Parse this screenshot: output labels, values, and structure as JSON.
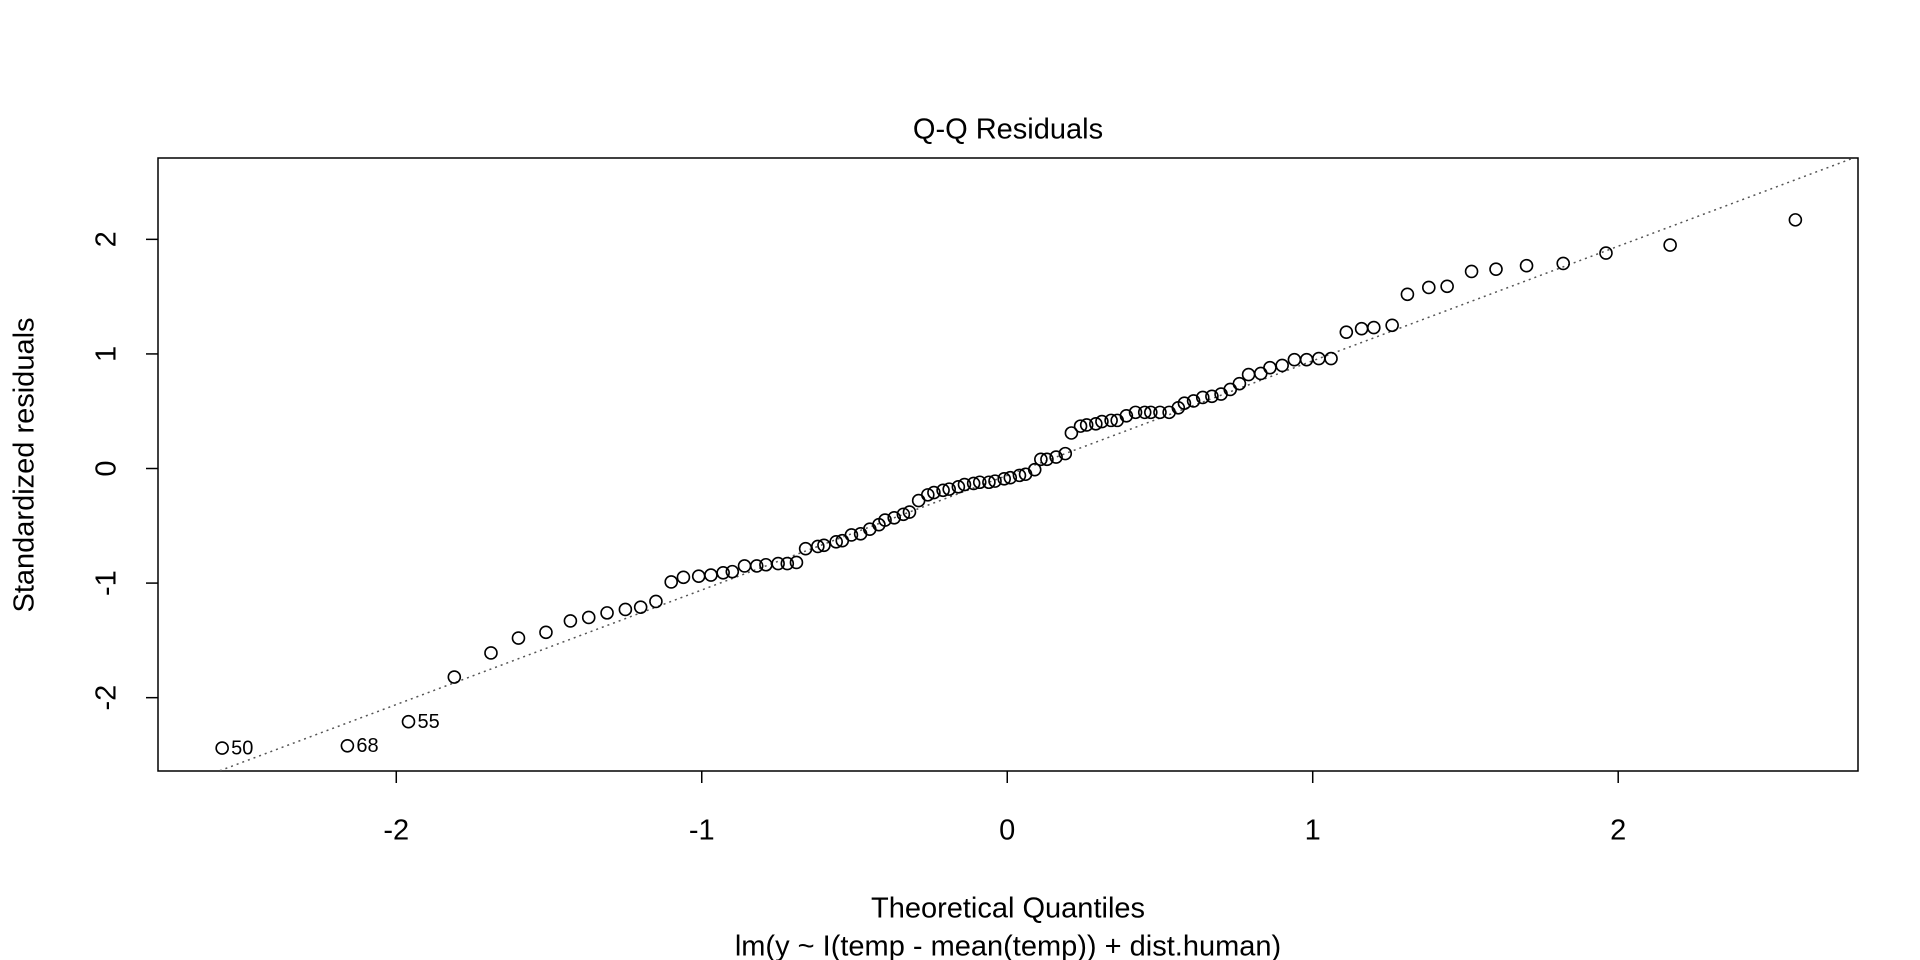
{
  "chart_data": {
    "type": "scatter",
    "title": "Q-Q Residuals",
    "x_label": "Theoretical Quantiles",
    "subtitle": "lm(y ~ I(temp - mean(temp)) + dist.human)",
    "y_label": "Standardized residuals",
    "xlim": [
      -2.78,
      2.785
    ],
    "ylim": [
      -2.64,
      2.71
    ],
    "xticks": [
      -2,
      -1,
      0,
      1,
      2
    ],
    "yticks": [
      -2,
      -1,
      0,
      1,
      2
    ],
    "color": "#000000",
    "reference_line": {
      "intercept": -0.06,
      "slope": 1.0
    },
    "x": [
      -2.57,
      -2.16,
      -1.96,
      -1.81,
      -1.69,
      -1.6,
      -1.51,
      -1.43,
      -1.37,
      -1.31,
      -1.25,
      -1.2,
      -1.15,
      -1.1,
      -1.06,
      -1.01,
      -0.97,
      -0.93,
      -0.9,
      -0.86,
      -0.82,
      -0.79,
      -0.75,
      -0.72,
      -0.69,
      -0.66,
      -0.62,
      -0.6,
      -0.56,
      -0.54,
      -0.51,
      -0.48,
      -0.45,
      -0.42,
      -0.4,
      -0.37,
      -0.34,
      -0.32,
      -0.29,
      -0.26,
      -0.24,
      -0.21,
      -0.19,
      -0.16,
      -0.14,
      -0.11,
      -0.09,
      -0.06,
      -0.04,
      -0.01,
      0.01,
      0.04,
      0.06,
      0.09,
      0.11,
      0.13,
      0.16,
      0.19,
      0.21,
      0.24,
      0.26,
      0.29,
      0.31,
      0.34,
      0.36,
      0.39,
      0.42,
      0.45,
      0.47,
      0.5,
      0.53,
      0.56,
      0.58,
      0.61,
      0.64,
      0.67,
      0.7,
      0.73,
      0.76,
      0.79,
      0.83,
      0.86,
      0.9,
      0.94,
      0.98,
      1.02,
      1.06,
      1.11,
      1.16,
      1.2,
      1.26,
      1.31,
      1.38,
      1.44,
      1.52,
      1.6,
      1.7,
      1.82,
      1.96,
      2.17,
      2.58
    ],
    "values": [
      -2.44,
      -2.42,
      -2.21,
      -1.82,
      -1.61,
      -1.48,
      -1.43,
      -1.33,
      -1.3,
      -1.26,
      -1.23,
      -1.21,
      -1.16,
      -0.99,
      -0.95,
      -0.94,
      -0.93,
      -0.91,
      -0.9,
      -0.85,
      -0.85,
      -0.84,
      -0.83,
      -0.83,
      -0.82,
      -0.7,
      -0.68,
      -0.67,
      -0.64,
      -0.63,
      -0.58,
      -0.57,
      -0.53,
      -0.49,
      -0.45,
      -0.43,
      -0.4,
      -0.38,
      -0.28,
      -0.23,
      -0.21,
      -0.19,
      -0.18,
      -0.16,
      -0.14,
      -0.13,
      -0.12,
      -0.12,
      -0.11,
      -0.09,
      -0.08,
      -0.06,
      -0.05,
      -0.01,
      0.08,
      0.08,
      0.1,
      0.13,
      0.31,
      0.37,
      0.38,
      0.39,
      0.41,
      0.42,
      0.42,
      0.46,
      0.49,
      0.49,
      0.49,
      0.49,
      0.49,
      0.53,
      0.57,
      0.59,
      0.62,
      0.63,
      0.65,
      0.69,
      0.74,
      0.82,
      0.83,
      0.88,
      0.9,
      0.95,
      0.95,
      0.96,
      0.96,
      1.19,
      1.22,
      1.23,
      1.25,
      1.52,
      1.58,
      1.59,
      1.72,
      1.74,
      1.77,
      1.79,
      1.88,
      1.95,
      2.17
    ],
    "point_labels": [
      "50",
      "68",
      "55",
      null,
      null,
      null,
      null,
      null,
      null,
      null,
      null,
      null,
      null,
      null,
      null,
      null,
      null,
      null,
      null,
      null,
      null,
      null,
      null,
      null,
      null,
      null,
      null,
      null,
      null,
      null,
      null,
      null,
      null,
      null,
      null,
      null,
      null,
      null,
      null,
      null,
      null,
      null,
      null,
      null,
      null,
      null,
      null,
      null,
      null,
      null,
      null,
      null,
      null,
      null,
      null,
      null,
      null,
      null,
      null,
      null,
      null,
      null,
      null,
      null,
      null,
      null,
      null,
      null,
      null,
      null,
      null,
      null,
      null,
      null,
      null,
      null,
      null,
      null,
      null,
      null,
      null,
      null,
      null,
      null,
      null,
      null,
      null,
      null,
      null,
      null,
      null,
      null,
      null,
      null,
      null,
      null,
      null,
      null,
      null,
      null,
      null
    ]
  }
}
